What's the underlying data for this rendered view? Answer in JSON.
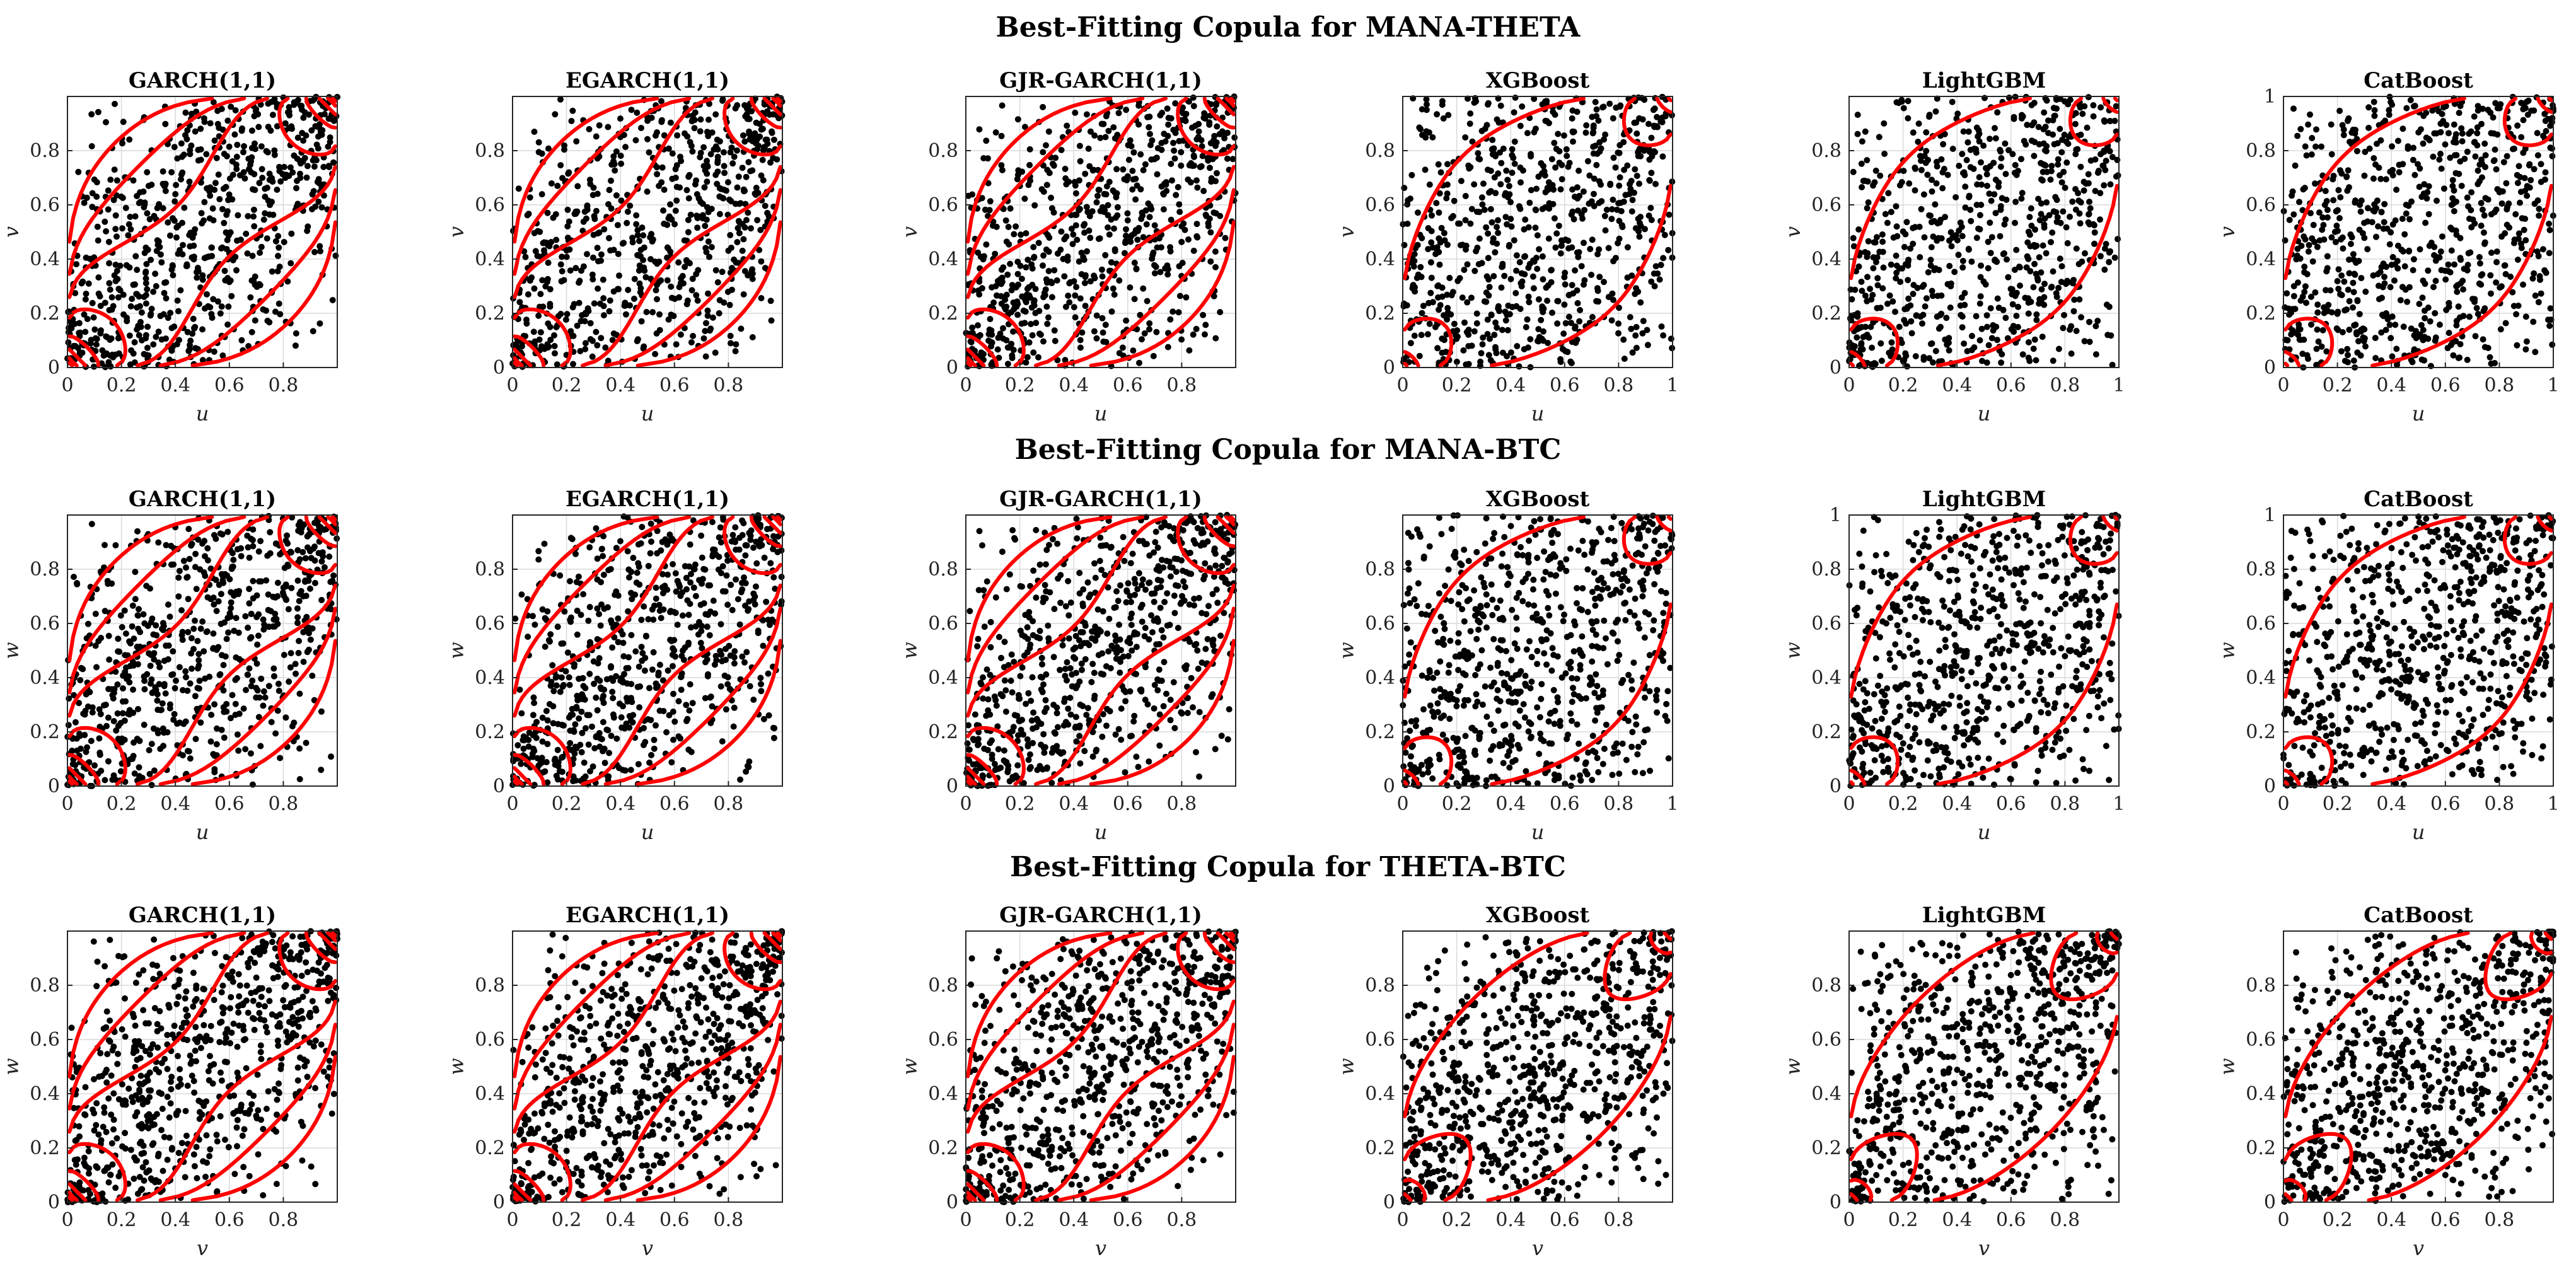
{
  "colors": {
    "points": "#000000",
    "contours": "#ff0000",
    "grid": "#d9d9d9",
    "frame": "#262626"
  },
  "chart_data": [
    {
      "title": "Best-Fitting Copula for MANA-THETA",
      "panels": [
        {
          "title": "GARCH(1,1)",
          "type": "scatter",
          "xlabel": "u",
          "ylabel": "v",
          "xlim": [
            0,
            1
          ],
          "ylim": [
            0,
            1
          ],
          "xticks": [
            "0",
            "0.2",
            "0.4",
            "0.6",
            "0.8"
          ],
          "yticks": [
            "0",
            "0.2",
            "0.4",
            "0.6",
            "0.8"
          ],
          "points": 750,
          "dependence": 0.55,
          "contour_family": "gaussian",
          "contour_rho": 0.52
        },
        {
          "title": "EGARCH(1,1)",
          "type": "scatter",
          "xlabel": "u",
          "ylabel": "v",
          "xlim": [
            0,
            1
          ],
          "ylim": [
            0,
            1
          ],
          "xticks": [
            "0",
            "0.2",
            "0.4",
            "0.6",
            "0.8"
          ],
          "yticks": [
            "0",
            "0.2",
            "0.4",
            "0.6",
            "0.8"
          ],
          "points": 750,
          "dependence": 0.55,
          "contour_family": "gaussian",
          "contour_rho": 0.52
        },
        {
          "title": "GJR-GARCH(1,1)",
          "type": "scatter",
          "xlabel": "u",
          "ylabel": "v",
          "xlim": [
            0,
            1
          ],
          "ylim": [
            0,
            1
          ],
          "xticks": [
            "0",
            "0.2",
            "0.4",
            "0.6",
            "0.8"
          ],
          "yticks": [
            "0",
            "0.2",
            "0.4",
            "0.6",
            "0.8"
          ],
          "points": 750,
          "dependence": 0.55,
          "contour_family": "gaussian",
          "contour_rho": 0.52
        },
        {
          "title": "XGBoost",
          "type": "scatter",
          "xlabel": "u",
          "ylabel": "v",
          "xlim": [
            0,
            1
          ],
          "ylim": [
            0,
            1
          ],
          "xticks": [
            "0",
            "0.2",
            "0.4",
            "0.6",
            "0.8",
            "1"
          ],
          "yticks": [
            "0",
            "0.2",
            "0.4",
            "0.6",
            "0.8"
          ],
          "points": 750,
          "dependence": 0.3,
          "contour_family": "student-t",
          "contour_rho": 0.3
        },
        {
          "title": "LightGBM",
          "type": "scatter",
          "xlabel": "u",
          "ylabel": "v",
          "xlim": [
            0,
            1
          ],
          "ylim": [
            0,
            1
          ],
          "xticks": [
            "0",
            "0.2",
            "0.4",
            "0.6",
            "0.8",
            "1"
          ],
          "yticks": [
            "0",
            "0.2",
            "0.4",
            "0.6",
            "0.8"
          ],
          "points": 750,
          "dependence": 0.3,
          "contour_family": "student-t",
          "contour_rho": 0.3
        },
        {
          "title": "CatBoost",
          "type": "scatter",
          "xlabel": "u",
          "ylabel": "v",
          "xlim": [
            0,
            1
          ],
          "ylim": [
            0,
            1
          ],
          "xticks": [
            "0",
            "0.2",
            "0.4",
            "0.6",
            "0.8",
            "1"
          ],
          "yticks": [
            "0",
            "0.2",
            "0.4",
            "0.6",
            "0.8",
            "1"
          ],
          "points": 750,
          "dependence": 0.3,
          "contour_family": "student-t",
          "contour_rho": 0.3
        }
      ]
    },
    {
      "title": "Best-Fitting Copula for MANA-BTC",
      "panels": [
        {
          "title": "GARCH(1,1)",
          "type": "scatter",
          "xlabel": "u",
          "ylabel": "w",
          "xlim": [
            0,
            1
          ],
          "ylim": [
            0,
            1
          ],
          "xticks": [
            "0",
            "0.2",
            "0.4",
            "0.6",
            "0.8"
          ],
          "yticks": [
            "0",
            "0.2",
            "0.4",
            "0.6",
            "0.8"
          ],
          "points": 750,
          "dependence": 0.55,
          "contour_family": "gaussian",
          "contour_rho": 0.52
        },
        {
          "title": "EGARCH(1,1)",
          "type": "scatter",
          "xlabel": "u",
          "ylabel": "w",
          "xlim": [
            0,
            1
          ],
          "ylim": [
            0,
            1
          ],
          "xticks": [
            "0",
            "0.2",
            "0.4",
            "0.6",
            "0.8"
          ],
          "yticks": [
            "0",
            "0.2",
            "0.4",
            "0.6",
            "0.8"
          ],
          "points": 750,
          "dependence": 0.55,
          "contour_family": "gaussian",
          "contour_rho": 0.52
        },
        {
          "title": "GJR-GARCH(1,1)",
          "type": "scatter",
          "xlabel": "u",
          "ylabel": "w",
          "xlim": [
            0,
            1
          ],
          "ylim": [
            0,
            1
          ],
          "xticks": [
            "0",
            "0.2",
            "0.4",
            "0.6",
            "0.8"
          ],
          "yticks": [
            "0",
            "0.2",
            "0.4",
            "0.6",
            "0.8"
          ],
          "points": 750,
          "dependence": 0.55,
          "contour_family": "gaussian",
          "contour_rho": 0.52
        },
        {
          "title": "XGBoost",
          "type": "scatter",
          "xlabel": "u",
          "ylabel": "w",
          "xlim": [
            0,
            1
          ],
          "ylim": [
            0,
            1
          ],
          "xticks": [
            "0",
            "0.2",
            "0.4",
            "0.6",
            "0.8",
            "1"
          ],
          "yticks": [
            "0",
            "0.2",
            "0.4",
            "0.6",
            "0.8"
          ],
          "points": 750,
          "dependence": 0.3,
          "contour_family": "student-t",
          "contour_rho": 0.3
        },
        {
          "title": "LightGBM",
          "type": "scatter",
          "xlabel": "u",
          "ylabel": "w",
          "xlim": [
            0,
            1
          ],
          "ylim": [
            0,
            1
          ],
          "xticks": [
            "0",
            "0.2",
            "0.4",
            "0.6",
            "0.8",
            "1"
          ],
          "yticks": [
            "0",
            "0.2",
            "0.4",
            "0.6",
            "0.8",
            "1"
          ],
          "points": 750,
          "dependence": 0.3,
          "contour_family": "student-t",
          "contour_rho": 0.3
        },
        {
          "title": "CatBoost",
          "type": "scatter",
          "xlabel": "u",
          "ylabel": "w",
          "xlim": [
            0,
            1
          ],
          "ylim": [
            0,
            1
          ],
          "xticks": [
            "0",
            "0.2",
            "0.4",
            "0.6",
            "0.8",
            "1"
          ],
          "yticks": [
            "0",
            "0.2",
            "0.4",
            "0.6",
            "0.8",
            "1"
          ],
          "points": 750,
          "dependence": 0.3,
          "contour_family": "student-t",
          "contour_rho": 0.3
        }
      ]
    },
    {
      "title": "Best-Fitting Copula for THETA-BTC",
      "panels": [
        {
          "title": "GARCH(1,1)",
          "type": "scatter",
          "xlabel": "v",
          "ylabel": "w",
          "xlim": [
            0,
            1
          ],
          "ylim": [
            0,
            1
          ],
          "xticks": [
            "0",
            "0.2",
            "0.4",
            "0.6",
            "0.8"
          ],
          "yticks": [
            "0",
            "0.2",
            "0.4",
            "0.6",
            "0.8"
          ],
          "points": 750,
          "dependence": 0.55,
          "contour_family": "gaussian",
          "contour_rho": 0.52
        },
        {
          "title": "EGARCH(1,1)",
          "type": "scatter",
          "xlabel": "v",
          "ylabel": "w",
          "xlim": [
            0,
            1
          ],
          "ylim": [
            0,
            1
          ],
          "xticks": [
            "0",
            "0.2",
            "0.4",
            "0.6",
            "0.8"
          ],
          "yticks": [
            "0",
            "0.2",
            "0.4",
            "0.6",
            "0.8"
          ],
          "points": 750,
          "dependence": 0.55,
          "contour_family": "gaussian",
          "contour_rho": 0.52
        },
        {
          "title": "GJR-GARCH(1,1)",
          "type": "scatter",
          "xlabel": "v",
          "ylabel": "w",
          "xlim": [
            0,
            1
          ],
          "ylim": [
            0,
            1
          ],
          "xticks": [
            "0",
            "0.2",
            "0.4",
            "0.6",
            "0.8"
          ],
          "yticks": [
            "0",
            "0.2",
            "0.4",
            "0.6",
            "0.8"
          ],
          "points": 750,
          "dependence": 0.55,
          "contour_family": "gaussian",
          "contour_rho": 0.52
        },
        {
          "title": "XGBoost",
          "type": "scatter",
          "xlabel": "v",
          "ylabel": "w",
          "xlim": [
            0,
            1
          ],
          "ylim": [
            0,
            1
          ],
          "xticks": [
            "0",
            "0.2",
            "0.4",
            "0.6",
            "0.8"
          ],
          "yticks": [
            "0",
            "0.2",
            "0.4",
            "0.6",
            "0.8"
          ],
          "points": 750,
          "dependence": 0.45,
          "contour_family": "student-t",
          "contour_rho": 0.4
        },
        {
          "title": "LightGBM",
          "type": "scatter",
          "xlabel": "v",
          "ylabel": "w",
          "xlim": [
            0,
            1
          ],
          "ylim": [
            0,
            1
          ],
          "xticks": [
            "0",
            "0.2",
            "0.4",
            "0.6",
            "0.8"
          ],
          "yticks": [
            "0",
            "0.2",
            "0.4",
            "0.6",
            "0.8"
          ],
          "points": 750,
          "dependence": 0.45,
          "contour_family": "student-t",
          "contour_rho": 0.4
        },
        {
          "title": "CatBoost",
          "type": "scatter",
          "xlabel": "v",
          "ylabel": "w",
          "xlim": [
            0,
            1
          ],
          "ylim": [
            0,
            1
          ],
          "xticks": [
            "0",
            "0.2",
            "0.4",
            "0.6",
            "0.8"
          ],
          "yticks": [
            "0",
            "0.2",
            "0.4",
            "0.6",
            "0.8"
          ],
          "points": 750,
          "dependence": 0.45,
          "contour_family": "student-t",
          "contour_rho": 0.4
        }
      ]
    }
  ]
}
